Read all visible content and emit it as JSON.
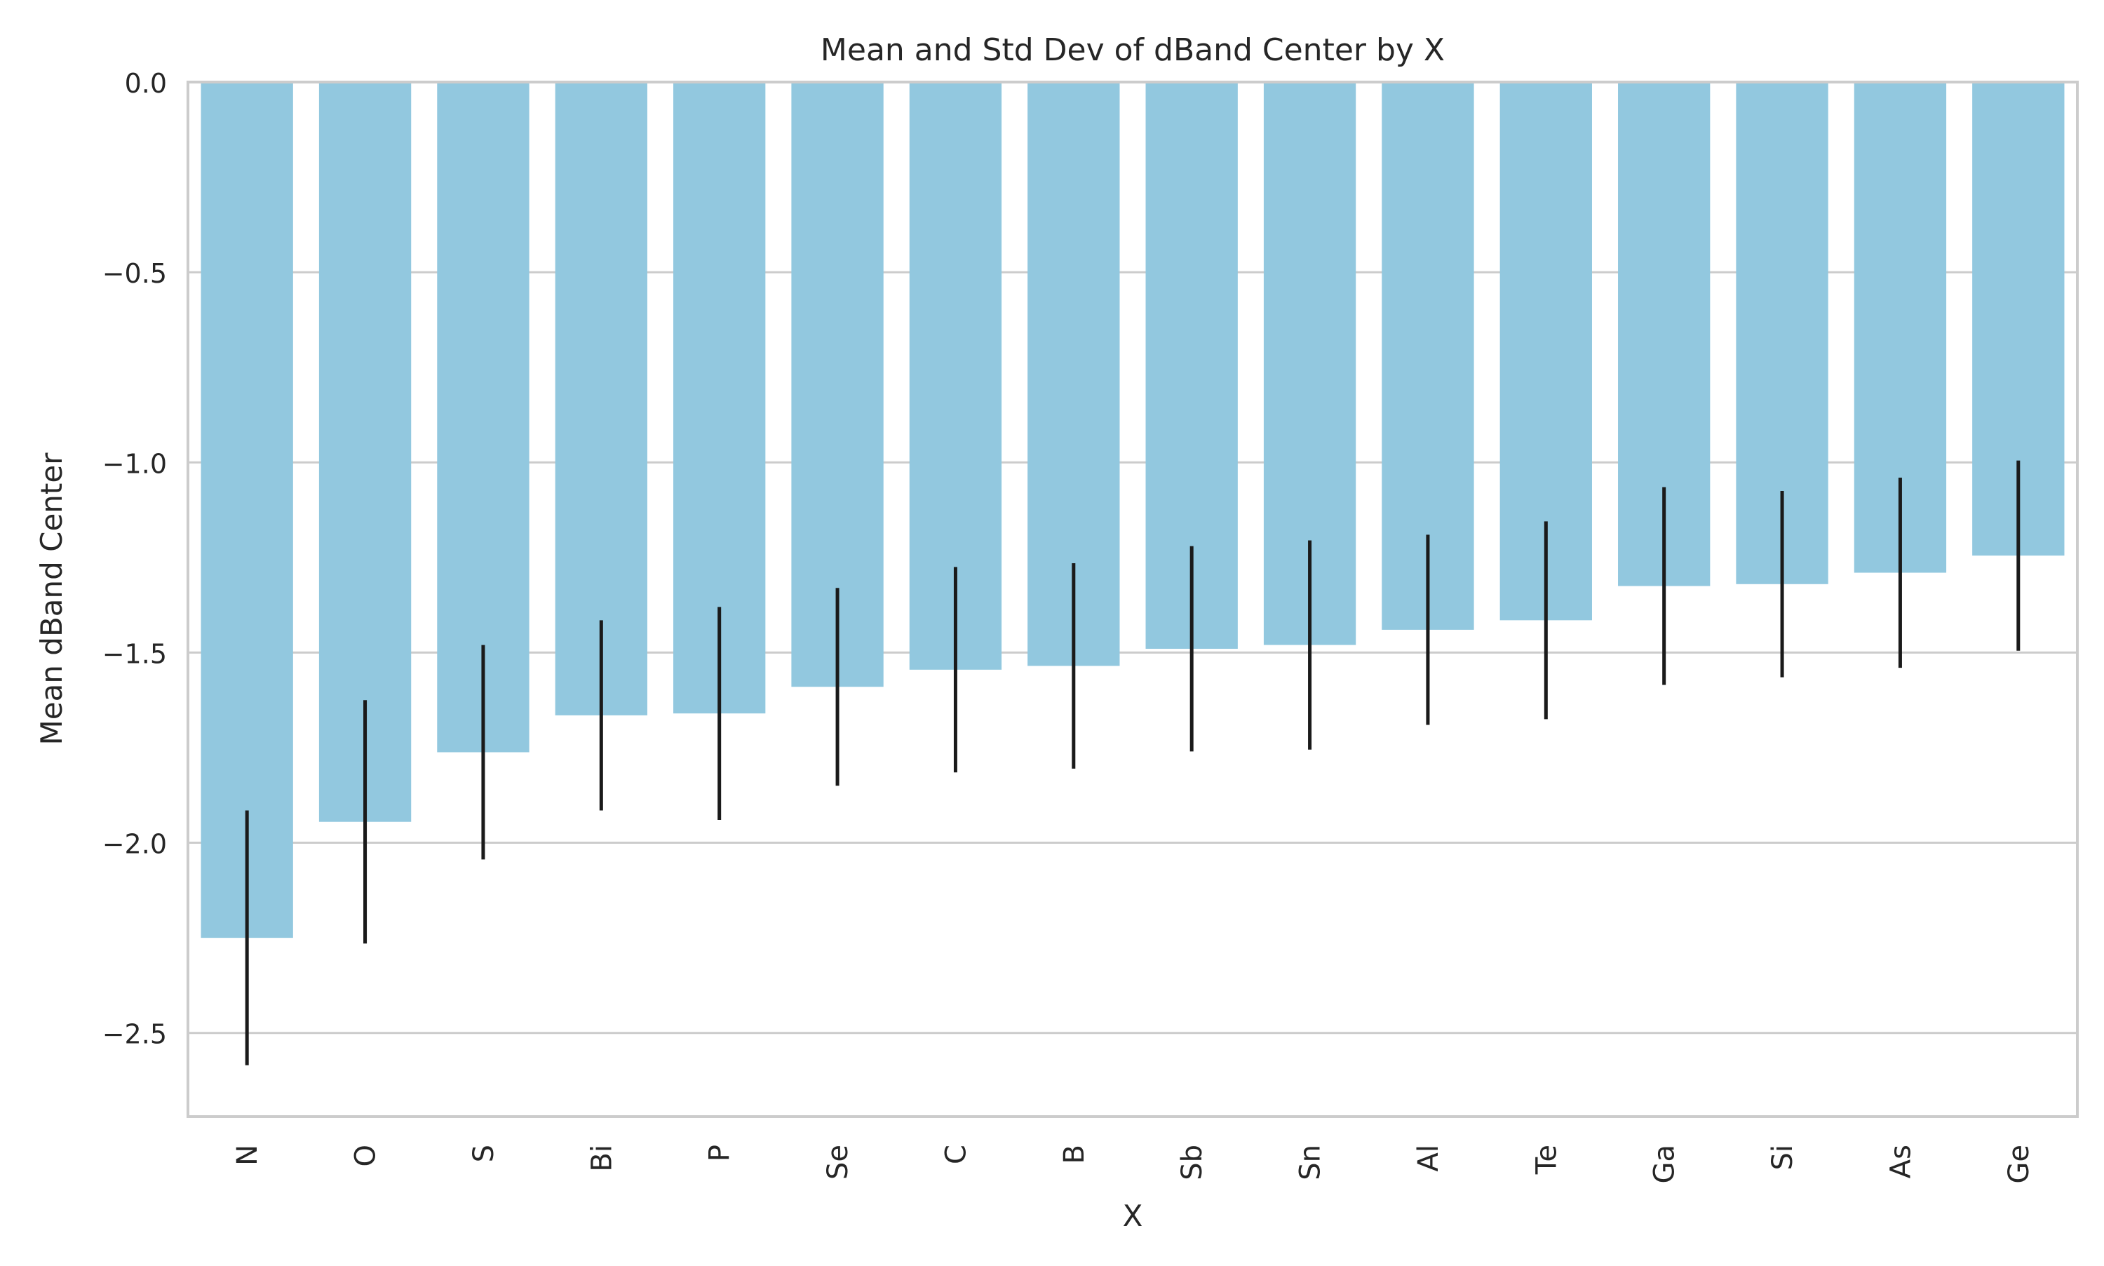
{
  "chart_data": {
    "type": "bar",
    "title": "Mean and Std Dev of dBand Center by X",
    "xlabel": "X",
    "ylabel": "Mean dBand Center",
    "categories": [
      "N",
      "O",
      "S",
      "Bi",
      "P",
      "Se",
      "C",
      "B",
      "Sb",
      "Sn",
      "Al",
      "Te",
      "Ga",
      "Si",
      "As",
      "Ge"
    ],
    "values": [
      -2.25,
      -1.945,
      -1.762,
      -1.665,
      -1.66,
      -1.59,
      -1.545,
      -1.535,
      -1.49,
      -1.48,
      -1.44,
      -1.415,
      -1.325,
      -1.32,
      -1.29,
      -1.245
    ],
    "std": [
      0.335,
      0.32,
      0.282,
      0.25,
      0.28,
      0.26,
      0.27,
      0.27,
      0.27,
      0.275,
      0.25,
      0.26,
      0.26,
      0.245,
      0.25,
      0.25
    ],
    "ylim": [
      -2.72,
      0.0
    ],
    "yticks": [
      0.0,
      -0.5,
      -1.0,
      -1.5,
      -2.0,
      -2.5
    ],
    "ytick_labels": [
      "0.0",
      "−0.5",
      "−1.0",
      "−1.5",
      "−2.0",
      "−2.5"
    ],
    "grid": true,
    "bar_color": "#92c8df",
    "errorbar_color": "#1a1a1a"
  }
}
